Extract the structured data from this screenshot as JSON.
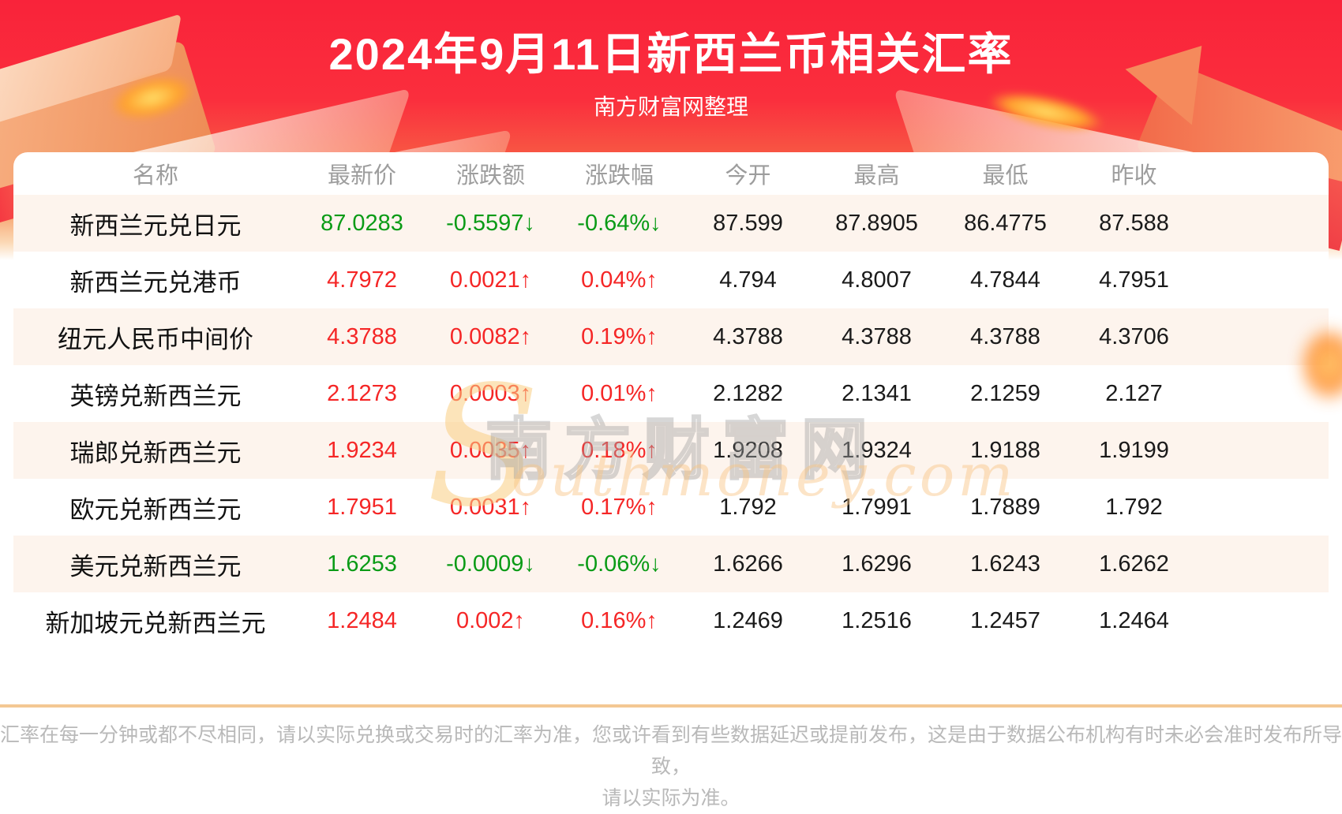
{
  "banner": {
    "title": "2024年9月11日新西兰币相关汇率",
    "subtitle": "南方财富网整理"
  },
  "table": {
    "columns": [
      "名称",
      "最新价",
      "涨跌额",
      "涨跌幅",
      "今开",
      "最高",
      "最低",
      "昨收"
    ],
    "rows": [
      {
        "name": "新西兰元兑日元",
        "latest": "87.0283",
        "change": "-0.5597↓",
        "change_pct": "-0.64%↓",
        "open": "87.599",
        "high": "87.8905",
        "low": "86.4775",
        "prev_close": "87.588",
        "trend": "down"
      },
      {
        "name": "新西兰元兑港币",
        "latest": "4.7972",
        "change": "0.0021↑",
        "change_pct": "0.04%↑",
        "open": "4.794",
        "high": "4.8007",
        "low": "4.7844",
        "prev_close": "4.7951",
        "trend": "up"
      },
      {
        "name": "纽元人民币中间价",
        "latest": "4.3788",
        "change": "0.0082↑",
        "change_pct": "0.19%↑",
        "open": "4.3788",
        "high": "4.3788",
        "low": "4.3788",
        "prev_close": "4.3706",
        "trend": "up"
      },
      {
        "name": "英镑兑新西兰元",
        "latest": "2.1273",
        "change": "0.0003↑",
        "change_pct": "0.01%↑",
        "open": "2.1282",
        "high": "2.1341",
        "low": "2.1259",
        "prev_close": "2.127",
        "trend": "up"
      },
      {
        "name": "瑞郎兑新西兰元",
        "latest": "1.9234",
        "change": "0.0035↑",
        "change_pct": "0.18%↑",
        "open": "1.9208",
        "high": "1.9324",
        "low": "1.9188",
        "prev_close": "1.9199",
        "trend": "up"
      },
      {
        "name": "欧元兑新西兰元",
        "latest": "1.7951",
        "change": "0.0031↑",
        "change_pct": "0.17%↑",
        "open": "1.792",
        "high": "1.7991",
        "low": "1.7889",
        "prev_close": "1.792",
        "trend": "up"
      },
      {
        "name": "美元兑新西兰元",
        "latest": "1.6253",
        "change": "-0.0009↓",
        "change_pct": "-0.06%↓",
        "open": "1.6266",
        "high": "1.6296",
        "low": "1.6243",
        "prev_close": "1.6262",
        "trend": "down"
      },
      {
        "name": "新加坡元兑新西兰元",
        "latest": "1.2484",
        "change": "0.002↑",
        "change_pct": "0.16%↑",
        "open": "1.2469",
        "high": "1.2516",
        "low": "1.2457",
        "prev_close": "1.2464",
        "trend": "up"
      }
    ]
  },
  "watermark": {
    "cn": "南方财富网",
    "s": "S",
    "en": "outhmoney.com"
  },
  "footer": {
    "line1": "汇率在每一分钟或都不尽相同，请以实际兑换或交易时的汇率为准，您或许看到有些数据延迟或提前发布，这是由于数据公布机构有时未必会准时发布所导致，",
    "line2": "请以实际为准。"
  },
  "colors": {
    "up_red": "#f52626",
    "down_green": "#0a9b16",
    "banner_red": "#f9233a",
    "row_alt_cream": "#fdf4ed",
    "divider_tan": "#f4c893"
  },
  "chart_data": {
    "type": "table",
    "title": "2024年9月11日新西兰币相关汇率",
    "subtitle": "南方财富网整理",
    "columns": [
      "名称",
      "最新价",
      "涨跌额",
      "涨跌幅",
      "今开",
      "最高",
      "最低",
      "昨收"
    ],
    "rows": [
      [
        "新西兰元兑日元",
        87.0283,
        -0.5597,
        "-0.64%",
        87.599,
        87.8905,
        86.4775,
        87.588
      ],
      [
        "新西兰元兑港币",
        4.7972,
        0.0021,
        "0.04%",
        4.794,
        4.8007,
        4.7844,
        4.7951
      ],
      [
        "纽元人民币中间价",
        4.3788,
        0.0082,
        "0.19%",
        4.3788,
        4.3788,
        4.3788,
        4.3706
      ],
      [
        "英镑兑新西兰元",
        2.1273,
        0.0003,
        "0.01%",
        2.1282,
        2.1341,
        2.1259,
        2.127
      ],
      [
        "瑞郎兑新西兰元",
        1.9234,
        0.0035,
        "0.18%",
        1.9208,
        1.9324,
        1.9188,
        1.9199
      ],
      [
        "欧元兑新西兰元",
        1.7951,
        0.0031,
        "0.17%",
        1.792,
        1.7991,
        1.7889,
        1.792
      ],
      [
        "美元兑新西兰元",
        1.6253,
        -0.0009,
        "-0.06%",
        1.6266,
        1.6296,
        1.6243,
        1.6262
      ],
      [
        "新加坡元兑新西兰元",
        1.2484,
        0.002,
        "0.16%",
        1.2469,
        1.2516,
        1.2457,
        1.2464
      ]
    ]
  }
}
